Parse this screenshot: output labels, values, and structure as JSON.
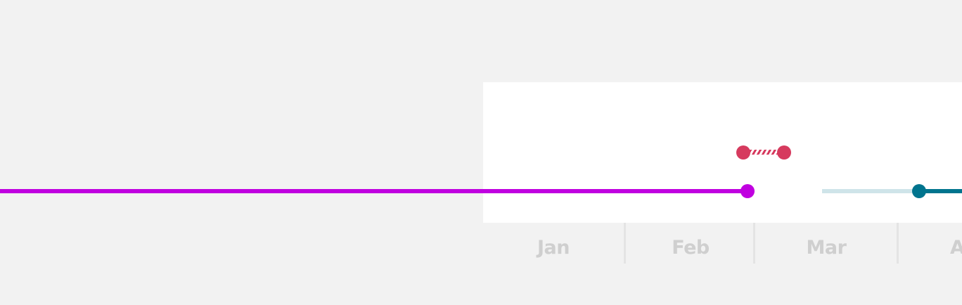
{
  "timeline": {
    "months": [
      "Jan",
      "Feb",
      "Mar",
      "A"
    ],
    "colors": {
      "purple": "#c000e0",
      "red": "#d63a5e",
      "teal": "#00748e",
      "teal_light": "#cfe4e9",
      "axis_text": "#cfcfcf"
    }
  }
}
